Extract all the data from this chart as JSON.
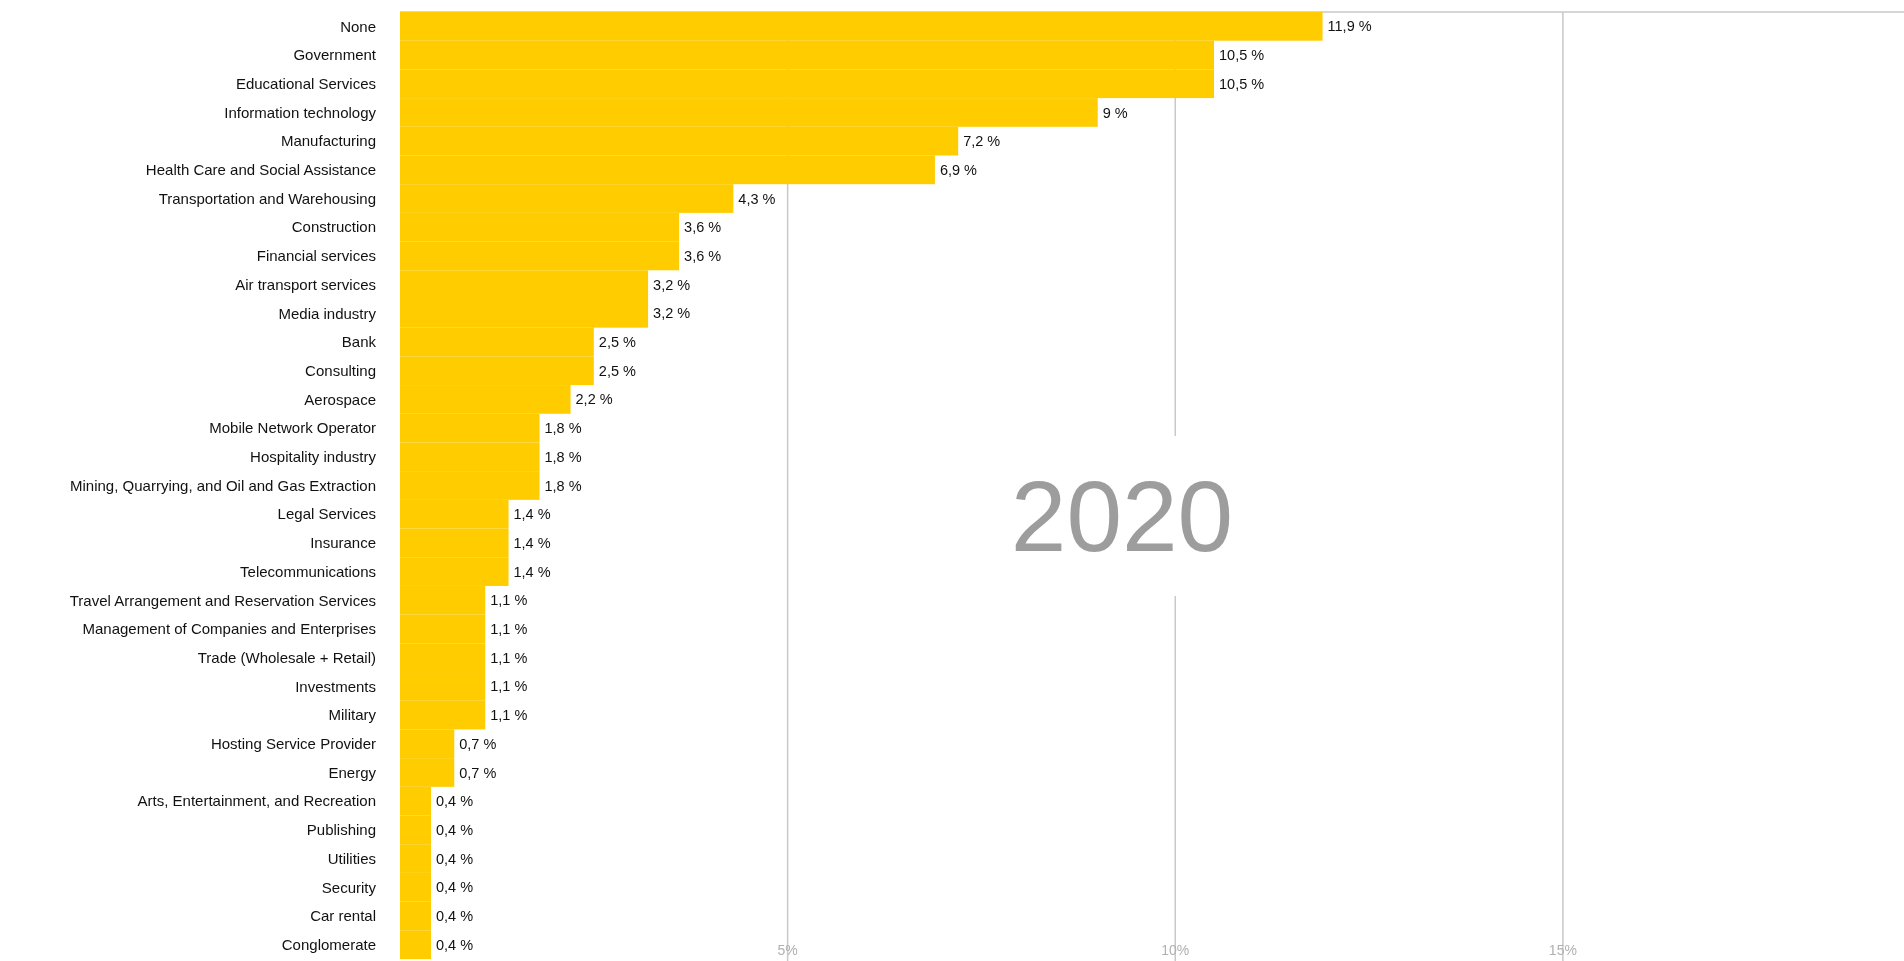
{
  "chart_data": {
    "type": "bar",
    "orientation": "horizontal",
    "annotations": [
      "2020"
    ],
    "categories": [
      "None",
      "Government",
      "Educational Services",
      "Information technology",
      "Manufacturing",
      "Health Care and Social Assistance",
      "Transportation and Warehousing",
      "Construction",
      "Financial services",
      "Air transport services",
      "Media industry",
      "Bank",
      "Consulting",
      "Aerospace",
      "Mobile Network Operator",
      "Hospitality industry",
      "Mining, Quarrying, and Oil and Gas Extraction",
      "Legal Services",
      "Insurance",
      "Telecommunications",
      "Travel Arrangement and Reservation Services",
      "Management of Companies and Enterprises",
      "Trade (Wholesale + Retail)",
      "Investments",
      "Military",
      "Hosting Service Provider",
      "Energy",
      "Arts, Entertainment, and Recreation",
      "Publishing",
      "Utilities",
      "Security",
      "Car rental",
      "Conglomerate"
    ],
    "values": [
      11.9,
      10.5,
      10.5,
      9,
      7.2,
      6.9,
      4.3,
      3.6,
      3.6,
      3.2,
      3.2,
      2.5,
      2.5,
      2.2,
      1.8,
      1.8,
      1.8,
      1.4,
      1.4,
      1.4,
      1.1,
      1.1,
      1.1,
      1.1,
      1.1,
      0.7,
      0.7,
      0.4,
      0.4,
      0.4,
      0.4,
      0.4,
      0.4
    ],
    "value_labels": [
      "11,9 %",
      "10,5 %",
      "10,5 %",
      "9 %",
      "7,2 %",
      "6,9 %",
      "4,3 %",
      "3,6 %",
      "3,6 %",
      "3,2 %",
      "3,2 %",
      "2,5 %",
      "2,5 %",
      "2,2 %",
      "1,8 %",
      "1,8 %",
      "1,8 %",
      "1,4 %",
      "1,4 %",
      "1,4 %",
      "1,1 %",
      "1,1 %",
      "1,1 %",
      "1,1 %",
      "1,1 %",
      "0,7 %",
      "0,7 %",
      "0,4 %",
      "0,4 %",
      "0,4 %",
      "0,4 %",
      "0,4 %",
      "0,4 %"
    ],
    "color": "#ffcc00",
    "xlim": [
      0,
      19.4
    ],
    "xticks": [
      {
        "value": 5,
        "label": "5%"
      },
      {
        "value": 10,
        "label": "10%"
      },
      {
        "value": 15,
        "label": "15%"
      }
    ],
    "grid": "x"
  }
}
